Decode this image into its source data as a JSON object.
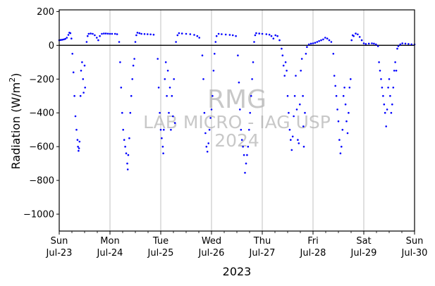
{
  "chart_data": {
    "type": "scatter",
    "title": "",
    "xlabel": "2023",
    "ylabel_main": "Radiation (W/m",
    "ylabel_sup": "2",
    "ylabel_close": ")",
    "ylim": [
      -1100,
      210
    ],
    "xlim": [
      0,
      7
    ],
    "grid_x": true,
    "grid_y": false,
    "zero_line": true,
    "point_color": "#0000ff",
    "yticks": [
      200,
      0,
      -200,
      -400,
      -600,
      -800,
      -1000
    ],
    "ytick_labels": [
      "200",
      "0",
      "−200",
      "−400",
      "−600",
      "−800",
      "−1000"
    ],
    "xticks": [
      {
        "day": 0,
        "line1": "Sun",
        "line2": "Jul-23"
      },
      {
        "day": 1,
        "line1": "Mon",
        "line2": "Jul-24"
      },
      {
        "day": 2,
        "line1": "Tue",
        "line2": "Jul-25"
      },
      {
        "day": 3,
        "line1": "Wed",
        "line2": "Jul-26"
      },
      {
        "day": 4,
        "line1": "Thu",
        "line2": "Jul-27"
      },
      {
        "day": 5,
        "line1": "Fri",
        "line2": "Jul-28"
      },
      {
        "day": 6,
        "line1": "Sat",
        "line2": "Jul-29"
      },
      {
        "day": 7,
        "line1": "Sun",
        "line2": "Jul-30"
      }
    ],
    "watermark": [
      "RMG",
      "LAB MICRO - IAG USP",
      "2024"
    ],
    "series": [
      {
        "values": [
          [
            0.0,
            30
          ],
          [
            0.03,
            32
          ],
          [
            0.06,
            33
          ],
          [
            0.09,
            35
          ],
          [
            0.12,
            38
          ],
          [
            0.15,
            45
          ],
          [
            0.18,
            62
          ],
          [
            0.2,
            75
          ],
          [
            0.22,
            72
          ],
          [
            0.24,
            40
          ],
          [
            0.26,
            -50
          ],
          [
            0.28,
            -160
          ],
          [
            0.3,
            -300
          ],
          [
            0.32,
            -420
          ],
          [
            0.34,
            -500
          ],
          [
            0.36,
            -560
          ],
          [
            0.37,
            -600
          ],
          [
            0.38,
            -625
          ],
          [
            0.39,
            -610
          ],
          [
            0.4,
            -570
          ],
          [
            0.42,
            -300
          ],
          [
            0.43,
            -150
          ],
          [
            0.45,
            -100
          ],
          [
            0.47,
            -200
          ],
          [
            0.48,
            -280
          ],
          [
            0.5,
            -120
          ],
          [
            0.51,
            -250
          ],
          [
            0.54,
            20
          ],
          [
            0.56,
            55
          ],
          [
            0.58,
            68
          ],
          [
            0.62,
            70
          ],
          [
            0.66,
            68
          ],
          [
            0.7,
            60
          ],
          [
            0.74,
            45
          ],
          [
            0.77,
            30
          ],
          [
            0.8,
            55
          ],
          [
            0.84,
            68
          ],
          [
            0.88,
            70
          ],
          [
            0.92,
            70
          ],
          [
            0.96,
            69
          ],
          [
            1.0,
            68
          ],
          [
            1.04,
            68
          ],
          [
            1.1,
            68
          ],
          [
            1.14,
            66
          ],
          [
            1.18,
            20
          ],
          [
            1.2,
            -100
          ],
          [
            1.22,
            -250
          ],
          [
            1.24,
            -400
          ],
          [
            1.26,
            -500
          ],
          [
            1.28,
            -560
          ],
          [
            1.3,
            -600
          ],
          [
            1.32,
            -640
          ],
          [
            1.34,
            -700
          ],
          [
            1.35,
            -735
          ],
          [
            1.36,
            -650
          ],
          [
            1.38,
            -550
          ],
          [
            1.4,
            -400
          ],
          [
            1.42,
            -300
          ],
          [
            1.44,
            -200
          ],
          [
            1.46,
            -120
          ],
          [
            1.48,
            -80
          ],
          [
            1.5,
            20
          ],
          [
            1.52,
            60
          ],
          [
            1.54,
            75
          ],
          [
            1.58,
            72
          ],
          [
            1.62,
            68
          ],
          [
            1.68,
            67
          ],
          [
            1.74,
            66
          ],
          [
            1.8,
            65
          ],
          [
            1.86,
            63
          ],
          [
            1.94,
            -80
          ],
          [
            1.96,
            -250
          ],
          [
            1.98,
            -400
          ],
          [
            2.0,
            -500
          ],
          [
            2.02,
            -550
          ],
          [
            2.04,
            -600
          ],
          [
            2.05,
            -640
          ],
          [
            2.06,
            -500
          ],
          [
            2.08,
            -200
          ],
          [
            2.1,
            -100
          ],
          [
            2.12,
            -300
          ],
          [
            2.14,
            -150
          ],
          [
            2.16,
            -400
          ],
          [
            2.18,
            -250
          ],
          [
            2.2,
            -500
          ],
          [
            2.22,
            -300
          ],
          [
            2.24,
            -420
          ],
          [
            2.26,
            -200
          ],
          [
            2.28,
            -460
          ],
          [
            2.3,
            20
          ],
          [
            2.33,
            60
          ],
          [
            2.36,
            72
          ],
          [
            2.42,
            70
          ],
          [
            2.5,
            68
          ],
          [
            2.58,
            66
          ],
          [
            2.66,
            62
          ],
          [
            2.72,
            55
          ],
          [
            2.76,
            45
          ],
          [
            2.82,
            -60
          ],
          [
            2.84,
            -200
          ],
          [
            2.86,
            -400
          ],
          [
            2.88,
            -520
          ],
          [
            2.9,
            -600
          ],
          [
            2.92,
            -630
          ],
          [
            2.94,
            -580
          ],
          [
            2.96,
            -500
          ],
          [
            2.98,
            -430
          ],
          [
            3.0,
            -380
          ],
          [
            3.02,
            -300
          ],
          [
            3.04,
            -150
          ],
          [
            3.06,
            -50
          ],
          [
            3.08,
            20
          ],
          [
            3.1,
            55
          ],
          [
            3.14,
            68
          ],
          [
            3.2,
            66
          ],
          [
            3.28,
            64
          ],
          [
            3.36,
            62
          ],
          [
            3.42,
            60
          ],
          [
            3.48,
            55
          ],
          [
            3.52,
            -60
          ],
          [
            3.54,
            -220
          ],
          [
            3.56,
            -380
          ],
          [
            3.58,
            -500
          ],
          [
            3.6,
            -560
          ],
          [
            3.62,
            -600
          ],
          [
            3.64,
            -650
          ],
          [
            3.66,
            -755
          ],
          [
            3.68,
            -700
          ],
          [
            3.7,
            -650
          ],
          [
            3.72,
            -600
          ],
          [
            3.74,
            -500
          ],
          [
            3.76,
            -400
          ],
          [
            3.78,
            -300
          ],
          [
            3.8,
            -200
          ],
          [
            3.82,
            -100
          ],
          [
            3.84,
            20
          ],
          [
            3.86,
            60
          ],
          [
            3.88,
            72
          ],
          [
            3.94,
            70
          ],
          [
            4.0,
            68
          ],
          [
            4.08,
            66
          ],
          [
            4.14,
            63
          ],
          [
            4.18,
            55
          ],
          [
            4.22,
            40
          ],
          [
            4.26,
            60
          ],
          [
            4.3,
            55
          ],
          [
            4.34,
            30
          ],
          [
            4.38,
            -20
          ],
          [
            4.4,
            -60
          ],
          [
            4.42,
            -120
          ],
          [
            4.44,
            -180
          ],
          [
            4.46,
            -100
          ],
          [
            4.48,
            -150
          ],
          [
            4.5,
            -300
          ],
          [
            4.52,
            -400
          ],
          [
            4.54,
            -500
          ],
          [
            4.56,
            -560
          ],
          [
            4.58,
            -620
          ],
          [
            4.6,
            -540
          ],
          [
            4.62,
            -420
          ],
          [
            4.64,
            -300
          ],
          [
            4.66,
            -180
          ],
          [
            4.68,
            -380
          ],
          [
            4.7,
            -560
          ],
          [
            4.72,
            -580
          ],
          [
            4.74,
            -350
          ],
          [
            4.76,
            -150
          ],
          [
            4.78,
            -80
          ],
          [
            4.8,
            -300
          ],
          [
            4.81,
            -480
          ],
          [
            4.82,
            -600
          ],
          [
            4.84,
            -400
          ],
          [
            4.86,
            -50
          ],
          [
            4.88,
            -10
          ],
          [
            4.92,
            5
          ],
          [
            4.96,
            10
          ],
          [
            5.0,
            12
          ],
          [
            5.04,
            15
          ],
          [
            5.08,
            20
          ],
          [
            5.12,
            25
          ],
          [
            5.16,
            30
          ],
          [
            5.2,
            35
          ],
          [
            5.24,
            45
          ],
          [
            5.28,
            40
          ],
          [
            5.32,
            30
          ],
          [
            5.36,
            20
          ],
          [
            5.4,
            -50
          ],
          [
            5.42,
            -180
          ],
          [
            5.44,
            -240
          ],
          [
            5.46,
            -300
          ],
          [
            5.48,
            -380
          ],
          [
            5.5,
            -450
          ],
          [
            5.52,
            -560
          ],
          [
            5.54,
            -640
          ],
          [
            5.56,
            -600
          ],
          [
            5.58,
            -500
          ],
          [
            5.6,
            -300
          ],
          [
            5.62,
            -250
          ],
          [
            5.64,
            -350
          ],
          [
            5.66,
            -450
          ],
          [
            5.68,
            -520
          ],
          [
            5.7,
            -400
          ],
          [
            5.72,
            -250
          ],
          [
            5.74,
            -200
          ],
          [
            5.76,
            30
          ],
          [
            5.78,
            60
          ],
          [
            5.8,
            55
          ],
          [
            5.84,
            70
          ],
          [
            5.88,
            65
          ],
          [
            5.92,
            50
          ],
          [
            5.96,
            30
          ],
          [
            6.0,
            12
          ],
          [
            6.04,
            8
          ],
          [
            6.1,
            10
          ],
          [
            6.16,
            12
          ],
          [
            6.2,
            10
          ],
          [
            6.24,
            5
          ],
          [
            6.28,
            -5
          ],
          [
            6.3,
            -100
          ],
          [
            6.32,
            -150
          ],
          [
            6.34,
            -200
          ],
          [
            6.36,
            -250
          ],
          [
            6.38,
            -300
          ],
          [
            6.4,
            -350
          ],
          [
            6.42,
            -400
          ],
          [
            6.44,
            -480
          ],
          [
            6.46,
            -380
          ],
          [
            6.48,
            -250
          ],
          [
            6.5,
            -200
          ],
          [
            6.52,
            -300
          ],
          [
            6.54,
            -400
          ],
          [
            6.56,
            -350
          ],
          [
            6.58,
            -250
          ],
          [
            6.6,
            -150
          ],
          [
            6.62,
            -100
          ],
          [
            6.64,
            -150
          ],
          [
            6.66,
            -20
          ],
          [
            6.68,
            -5
          ],
          [
            6.72,
            5
          ],
          [
            6.76,
            12
          ],
          [
            6.82,
            10
          ],
          [
            6.88,
            8
          ],
          [
            6.94,
            6
          ],
          [
            7.0,
            5
          ]
        ]
      }
    ]
  }
}
